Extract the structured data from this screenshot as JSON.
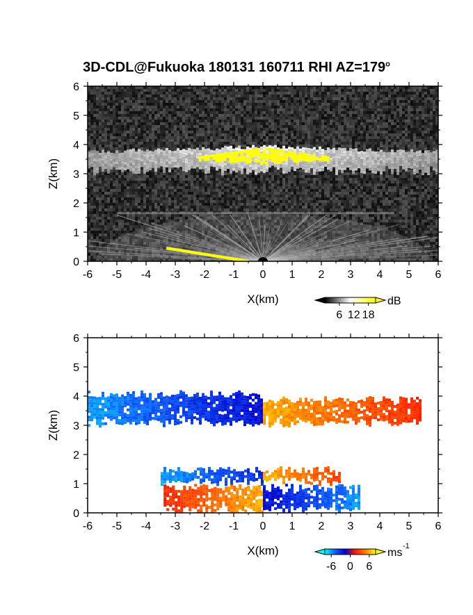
{
  "figure": {
    "title": "3D-CDL@Fukuoka 180131 160711 RHI AZ=179",
    "title_superscript": "o"
  },
  "chart_data": [
    {
      "type": "heatmap",
      "panel": "reflectivity",
      "xlabel": "X(km)",
      "ylabel": "Z(km)",
      "xlim": [
        -6,
        6
      ],
      "ylim": [
        0,
        6
      ],
      "xticks": [
        "-6",
        "-5",
        "-4",
        "-3",
        "-2",
        "-1",
        "0",
        "1",
        "2",
        "3",
        "4",
        "5",
        "6"
      ],
      "yticks": [
        "0",
        "1",
        "2",
        "3",
        "4",
        "5",
        "6"
      ],
      "background_color": "#1a1a1a",
      "colorbar": {
        "unit": "dB",
        "tick_labels": [
          "6",
          "12",
          "18"
        ],
        "ticks": [
          6,
          12,
          18
        ],
        "range": [
          0,
          21
        ],
        "colors": [
          "#000000",
          "#ffffff",
          "#ffff00"
        ]
      },
      "features": [
        {
          "name": "cloud layer",
          "x": [
            -6,
            6
          ],
          "z": [
            3.0,
            4.0
          ],
          "level": "bright"
        },
        {
          "name": "cloud core",
          "x": [
            -2.2,
            2.2
          ],
          "z": [
            3.4,
            3.9
          ],
          "level": "max"
        },
        {
          "name": "boundary layer fan",
          "x": [
            -5,
            4.5
          ],
          "z": [
            0,
            1.6
          ],
          "level": "moderate"
        },
        {
          "name": "ground clutter",
          "x": [
            -3.3,
            -0.5
          ],
          "z": [
            0,
            0.45
          ],
          "level": "max"
        }
      ]
    },
    {
      "type": "heatmap",
      "panel": "doppler velocity",
      "xlabel": "X(km)",
      "ylabel": "Z(km)",
      "xlim": [
        -6,
        6
      ],
      "ylim": [
        0,
        6
      ],
      "xticks": [
        "-6",
        "-5",
        "-4",
        "-3",
        "-2",
        "-1",
        "0",
        "1",
        "2",
        "3",
        "4",
        "5",
        "6"
      ],
      "yticks": [
        "0",
        "1",
        "2",
        "3",
        "4",
        "5",
        "6"
      ],
      "colorbar": {
        "unit": "ms",
        "unit_exponent": "-1",
        "tick_labels": [
          "-6",
          "0",
          "6"
        ],
        "ticks": [
          -6,
          0,
          6
        ],
        "range": [
          -8,
          8
        ],
        "colors": [
          "#00ffff",
          "#1060ff",
          "#0000cc",
          "#ff1a00",
          "#ff8000",
          "#ffff00"
        ]
      },
      "features": [
        {
          "name": "upper layer west (toward)",
          "x": [
            -6,
            0
          ],
          "z": [
            3.0,
            4.2
          ],
          "velocity_ms": [
            -6,
            -2
          ]
        },
        {
          "name": "upper layer east (away)",
          "x": [
            0,
            5.4
          ],
          "z": [
            3.0,
            4.0
          ],
          "velocity_ms": [
            2,
            6
          ]
        },
        {
          "name": "lower layer west",
          "x": [
            -3.4,
            0
          ],
          "z": [
            0,
            1.0
          ],
          "velocity_ms": [
            2,
            6
          ]
        },
        {
          "name": "lower layer east",
          "x": [
            0,
            3.3
          ],
          "z": [
            0,
            1.0
          ],
          "velocity_ms": [
            -6,
            -2
          ]
        },
        {
          "name": "mid layer west",
          "x": [
            -3.5,
            0
          ],
          "z": [
            1.0,
            1.6
          ],
          "velocity_ms": [
            -6,
            -3
          ]
        },
        {
          "name": "mid layer east",
          "x": [
            0,
            2.6
          ],
          "z": [
            1.0,
            1.6
          ],
          "velocity_ms": [
            3,
            6
          ]
        }
      ]
    }
  ]
}
